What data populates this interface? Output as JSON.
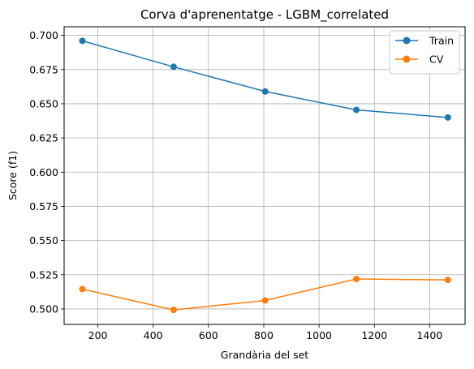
{
  "chart_data": {
    "type": "line",
    "title": "Corva d'aprenentatge - LGBM_correlated",
    "xlabel": "Grandària del set",
    "ylabel": "Score (f1)",
    "xlim": [
      78,
      1528
    ],
    "ylim": [
      0.4887,
      0.7063
    ],
    "x_ticks": [
      200,
      400,
      600,
      800,
      1000,
      1200,
      1400
    ],
    "y_ticks": [
      0.5,
      0.525,
      0.55,
      0.575,
      0.6,
      0.625,
      0.65,
      0.675,
      0.7
    ],
    "x_tick_labels": [
      "200",
      "400",
      "600",
      "800",
      "1000",
      "1200",
      "1400"
    ],
    "y_tick_labels": [
      "0.500",
      "0.525",
      "0.550",
      "0.575",
      "0.600",
      "0.625",
      "0.650",
      "0.675",
      "0.700"
    ],
    "grid": true,
    "legend_position": "top-right",
    "series": [
      {
        "name": "Train",
        "color": "#1f77b4",
        "x": [
          144,
          474,
          805,
          1135,
          1466
        ],
        "values": [
          0.696,
          0.677,
          0.659,
          0.6455,
          0.64
        ]
      },
      {
        "name": "CV",
        "color": "#ff7f0e",
        "x": [
          144,
          474,
          805,
          1135,
          1466
        ],
        "values": [
          0.5145,
          0.4993,
          0.5062,
          0.5219,
          0.5212
        ]
      }
    ]
  }
}
